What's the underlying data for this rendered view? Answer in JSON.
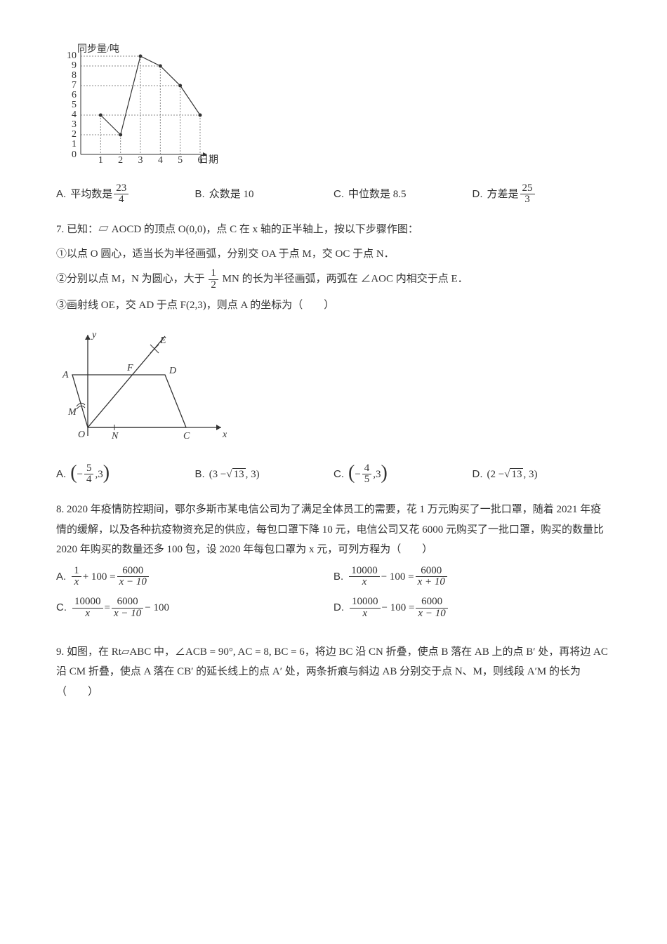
{
  "q6": {
    "chart": {
      "type": "line",
      "ylabel": "同步量/吨",
      "xlabel": "日期",
      "xvals": [
        1,
        2,
        3,
        4,
        5,
        6
      ],
      "yvals": [
        4,
        2,
        10,
        9,
        7,
        4
      ],
      "ylim": [
        0,
        10
      ],
      "ytick_step": 1,
      "marker": "dot",
      "marker_color": "#333333",
      "line_color": "#333333",
      "grid_color": "#888888",
      "background": "#ffffff",
      "axis_color": "#333333",
      "label_fontsize": 9
    },
    "options": {
      "A": {
        "prefix": "平均数是",
        "num": "23",
        "den": "4"
      },
      "B": {
        "text": "众数是 10"
      },
      "C": {
        "text": "中位数是 8.5"
      },
      "D": {
        "prefix": "方差是",
        "num": "25",
        "den": "3"
      }
    }
  },
  "q7": {
    "intro": "已知：▱ AOCD 的顶点 O(0,0)，点 C 在 x 轴的正半轴上，按以下步骤作图：",
    "step1": "①以点 O   圆心，适当长为半径画弧，分别交 OA 于点 M，交 OC 于点 N．",
    "step2_pre": "②分别以点 M，N 为圆心，大于",
    "step2_num": "1",
    "step2_den": "2",
    "step2_post": "MN 的长为半径画弧，两弧在 ∠AOC 内相交于点 E．",
    "step3": "③画射线 OE，交 AD 于点 F(2,3)，则点 A 的坐标为（　　）",
    "geo": {
      "labels": {
        "y": "y",
        "x": "x",
        "E": "E",
        "F": "F",
        "D": "D",
        "A": "A",
        "M": "M",
        "O": "O",
        "N": "N",
        "C": "C"
      },
      "axis_color": "#333333",
      "line_color": "#333333"
    },
    "options": {
      "A": {
        "type": "paren-frac",
        "sign": "−",
        "num": "5",
        "den": "4",
        "y": "3"
      },
      "B": {
        "type": "sqrt",
        "expr_pre": "(3 − ",
        "rad": "13",
        "expr_post": ", 3)"
      },
      "C": {
        "type": "paren-frac",
        "sign": "−",
        "num": "4",
        "den": "5",
        "y": "3"
      },
      "D": {
        "type": "sqrt",
        "expr_pre": "(2 − ",
        "rad": "13",
        "expr_post": ", 3)"
      }
    }
  },
  "q8": {
    "text": "2020 年疫情防控期间，鄂尔多斯市某电信公司为了满足全体员工的需要，花 1 万元购买了一批口罩，随着 2021 年疫情的缓解，以及各种抗疫物资充足的供应，每包口罩下降 10 元，电信公司又花 6000 元购买了一批口罩，购买的数量比 2020 年购买的数量还多 100 包，设 2020 年每包口罩为 x 元，可列方程为（　　）",
    "options": {
      "A": {
        "l_num": "1",
        "l_den": "x",
        "mid": " + 100 = ",
        "r_num": "6000",
        "r_den": "x − 10"
      },
      "B": {
        "l_num": "10000",
        "l_den": "x",
        "mid": " − 100 = ",
        "r_num": "6000",
        "r_den": "x + 10"
      },
      "C": {
        "l_num": "10000",
        "l_den": "x",
        "mid": " = ",
        "r_num": "6000",
        "r_den": "x − 10",
        "tail": " − 100"
      },
      "D": {
        "l_num": "10000",
        "l_den": "x",
        "mid": " − 100 = ",
        "r_num": "6000",
        "r_den": "x − 10"
      }
    }
  },
  "q9": {
    "text": "如图，在 Rt▱ABC 中，∠ACB = 90°, AC = 8, BC = 6，将边 BC 沿 CN 折叠，使点 B 落在 AB 上的点 B′ 处，再将边 AC 沿 CM 折叠，使点 A 落在 CB′ 的延长线上的点 A′ 处，两条折痕与斜边 AB 分别交于点 N、M，则线段 A′M 的长为（　　）"
  },
  "labels": {
    "A": "A.",
    "B": "B.",
    "C": "C.",
    "D": "D.",
    "q7": "7.",
    "q8": "8.",
    "q9": "9."
  }
}
